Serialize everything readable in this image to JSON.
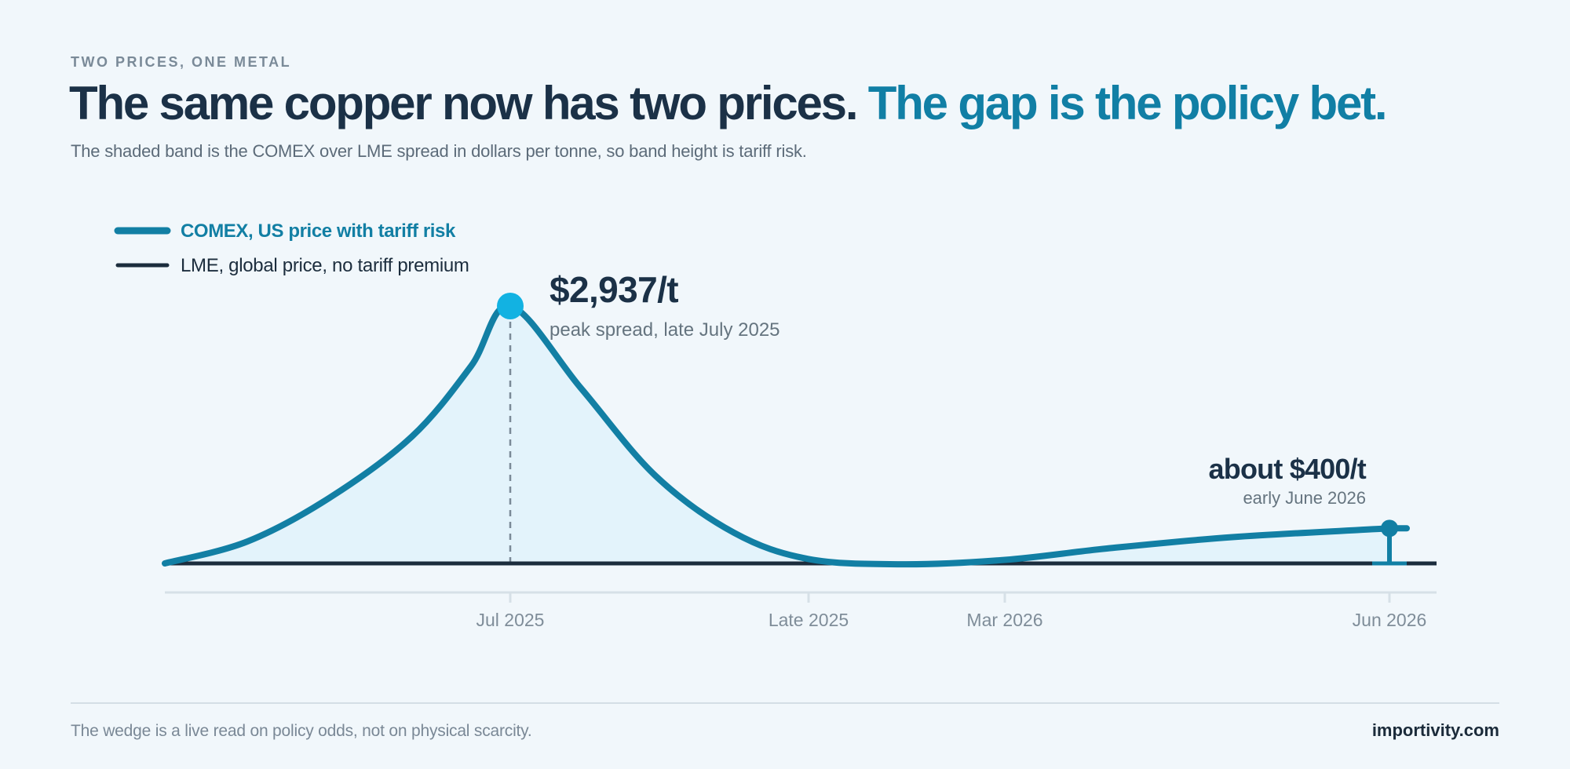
{
  "header": {
    "eyebrow": "TWO PRICES, ONE METAL",
    "headline_main": "The same copper now has two prices.",
    "headline_accent": "The gap is the policy bet.",
    "subtitle": "The shaded band is the COMEX over LME spread in dollars per tonne, so band height is tariff risk."
  },
  "legend": {
    "comex_label": "COMEX, US price with tariff risk",
    "lme_label": "LME, global price, no tariff premium"
  },
  "annotations": {
    "peak_value": "$2,937/t",
    "peak_caption": "peak spread, late July 2025",
    "end_value": "about $400/t",
    "end_caption": "early June 2026"
  },
  "colors": {
    "comex_line": "#127fa4",
    "lme_line": "#1c2d3d",
    "band_fill": "#e3f3fb",
    "peak_marker": "#12b2e2",
    "text_dark": "#1b3147",
    "accent_text": "#117fa5"
  },
  "chart_data": {
    "type": "area",
    "xlabel": "",
    "ylabel": "",
    "ylim": [
      0,
      3000
    ],
    "x_ticks": [
      "Jul 2025",
      "Late 2025",
      "Mar 2026",
      "Jun 2026"
    ],
    "grid": false,
    "legend_position": "top-left",
    "series": [
      {
        "name": "COMEX, US price with tariff risk",
        "role": "spread over LME",
        "points": [
          {
            "x": "Feb 2025",
            "y": 0
          },
          {
            "x": "Mar 2025",
            "y": 250
          },
          {
            "x": "Apr 2025",
            "y": 750
          },
          {
            "x": "May 2025",
            "y": 1450
          },
          {
            "x": "Jun 2025",
            "y": 2250
          },
          {
            "x": "Late Jul 2025",
            "y": 2937
          },
          {
            "x": "Aug 2025",
            "y": 2000
          },
          {
            "x": "Sep 2025",
            "y": 1000
          },
          {
            "x": "Oct 2025",
            "y": 350
          },
          {
            "x": "Late 2025",
            "y": 50
          },
          {
            "x": "Jan 2026",
            "y": -10
          },
          {
            "x": "Mar 2026",
            "y": 40
          },
          {
            "x": "Apr 2026",
            "y": 170
          },
          {
            "x": "May 2026",
            "y": 300
          },
          {
            "x": "Early Jun 2026",
            "y": 400
          }
        ]
      },
      {
        "name": "LME, global price, no tariff premium",
        "role": "baseline",
        "points": [
          {
            "x": "Feb 2025",
            "y": 0
          },
          {
            "x": "Early Jun 2026",
            "y": 0
          }
        ]
      }
    ],
    "annotations": [
      {
        "x": "Late Jul 2025",
        "y": 2937,
        "label": "$2,937/t",
        "caption": "peak spread, late July 2025"
      },
      {
        "x": "Early Jun 2026",
        "y": 400,
        "label": "about $400/t",
        "caption": "early June 2026"
      }
    ]
  },
  "footer": {
    "note": "The wedge is a live read on policy odds, not on physical scarcity.",
    "brand": "importivity.com"
  }
}
